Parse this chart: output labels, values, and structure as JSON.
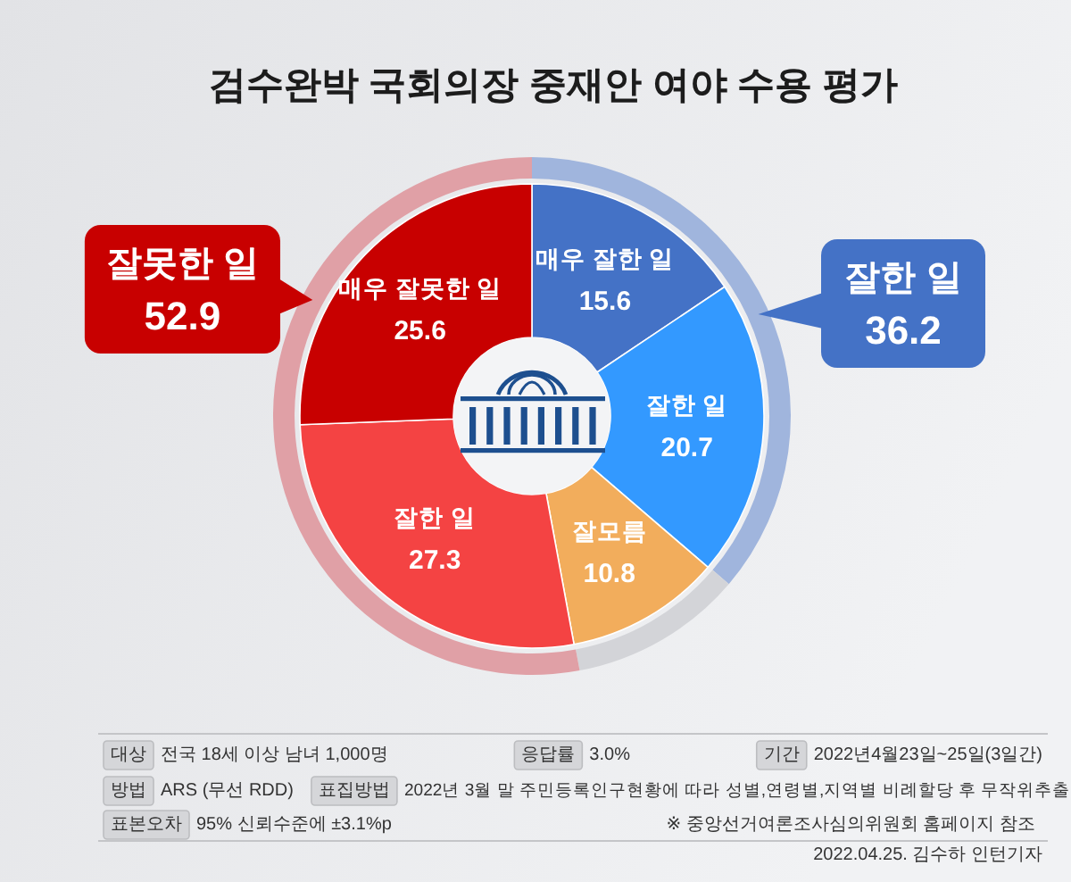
{
  "chart_data": [
    {
      "type": "donut",
      "title": "검수완박 국회의장 중재안 여야 수용 평가",
      "categories": [
        "매우 잘한 일",
        "잘한 일",
        "잘모름",
        "잘한 일",
        "매우 잘못한 일"
      ],
      "values": [
        15.6,
        20.7,
        10.8,
        27.3,
        25.6
      ],
      "colors": [
        "#4472c6",
        "#3399ff",
        "#f2ad5c",
        "#f44343",
        "#c80000"
      ],
      "data_labels": true,
      "annotations": [
        "대상",
        "전국 18세 이상 남녀 1,000명",
        "응답률",
        "3.0%",
        "기간",
        "2022년4월23일~25일(3일간)",
        "방법",
        "ARS (무선 RDD)",
        "표집방법",
        "2022년 3월 말 주민등록인구현황에 따라 성별,연령별,지역별 비례할당 후 무작위추출",
        "표본오차",
        "95% 신뢰수준에 ±3.1%p",
        "※ 중앙선거여론조사심의위원회 홈페이지 참조",
        "2022.04.25. 김수하 인턴기자"
      ]
    },
    {
      "type": "donut",
      "categories": [
        "잘한 일",
        null,
        "잘못한 일"
      ],
      "values": [
        36.2,
        10.8,
        52.9
      ],
      "colors": [
        "#a0b5dd",
        "#d3d4d8",
        "#e0a0a6"
      ],
      "value_labels": [
        "36.2",
        null,
        "52.9"
      ]
    }
  ]
}
